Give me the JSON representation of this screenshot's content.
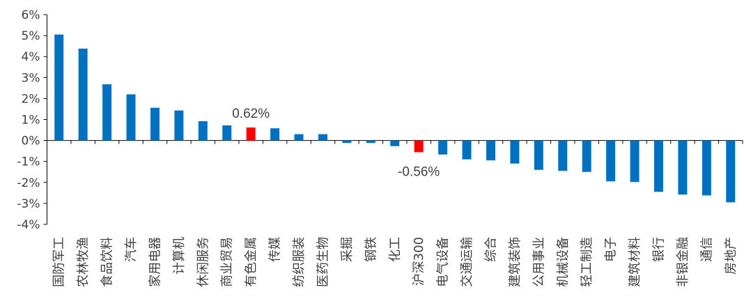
{
  "chart_data": {
    "type": "bar",
    "title": "",
    "xlabel": "",
    "ylabel": "",
    "ylim": [
      -4,
      6
    ],
    "y_ticks": [
      "6%",
      "5%",
      "4%",
      "3%",
      "2%",
      "1%",
      "0%",
      "-1%",
      "-2%",
      "-3%",
      "-4%"
    ],
    "y_unit": "%",
    "grid": false,
    "legend": "none",
    "colors": {
      "default": "#0070C0",
      "highlight": "#FF0000"
    },
    "categories": [
      "国防军工",
      "农林牧渔",
      "食品饮料",
      "汽车",
      "家用电器",
      "计算机",
      "休闲服务",
      "商业贸易",
      "有色金属",
      "传媒",
      "纺织服装",
      "医药生物",
      "采掘",
      "钢铁",
      "化工",
      "沪深300",
      "电气设备",
      "交通运输",
      "综合",
      "建筑装饰",
      "公用事业",
      "机械设备",
      "轻工制造",
      "电子",
      "建筑材料",
      "银行",
      "非银金融",
      "通信",
      "房地产"
    ],
    "values": [
      5.05,
      4.38,
      2.68,
      2.2,
      1.56,
      1.43,
      0.92,
      0.72,
      0.62,
      0.58,
      0.3,
      0.3,
      -0.12,
      -0.12,
      -0.27,
      -0.56,
      -0.67,
      -0.9,
      -0.95,
      -1.1,
      -1.4,
      -1.45,
      -1.5,
      -1.95,
      -1.98,
      -2.45,
      -2.58,
      -2.62,
      -2.95
    ],
    "highlight": [
      "有色金属",
      "沪深300"
    ],
    "annotations": [
      {
        "category": "有色金属",
        "text": "0.62%"
      },
      {
        "category": "沪深300",
        "text": "-0.56%"
      }
    ]
  }
}
